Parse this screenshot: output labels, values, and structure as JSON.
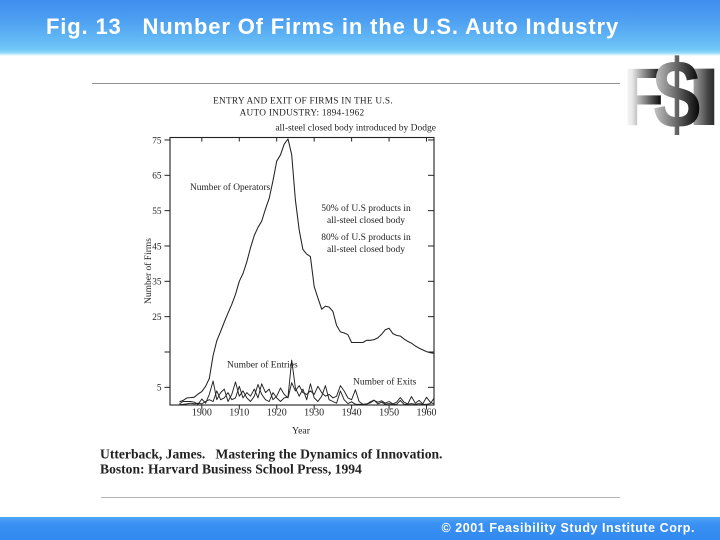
{
  "header": {
    "title": "Fig. 13   Number Of Firms in the U.S. Auto Industry"
  },
  "footer": {
    "copyright": "© 2001 Feasibility Study Institute Corp."
  },
  "logo": {
    "name": "FSI logo",
    "letters": [
      "F",
      "$",
      "I"
    ]
  },
  "citation": {
    "line1": "Utterback, James.   Mastering the Dynamics of Innovation.",
    "line2": "Boston: Harvard Business School Press, 1994"
  },
  "colors": {
    "header_gradient_top": "#3f8eee",
    "header_gradient_bottom": "#70c7f7",
    "footer_blue": "#3a91f3",
    "title_text": "#ffffff",
    "scan_ink": "#1c1c1c",
    "rule_gray": "#9a9a9a"
  },
  "chart_data": {
    "type": "line",
    "title_line1": "ENTRY AND EXIT OF FIRMS IN THE U.S.",
    "title_line2": "AUTO INDUSTRY: 1894-1962",
    "xlabel": "Year",
    "ylabel": "Number of Firms",
    "xlim": [
      1891.5,
      1962
    ],
    "ylim": [
      0,
      75.7
    ],
    "x_ticks": [
      1900,
      1910,
      1920,
      1930,
      1940,
      1950,
      1960
    ],
    "y_ticks": [
      5,
      15,
      25,
      35,
      45,
      55,
      65,
      75
    ],
    "y_tick_labeled": [
      5,
      25,
      35,
      45,
      55,
      65,
      75
    ],
    "grid": false,
    "legend_position": "inline-annotations",
    "annotations": {
      "dodge": "all-steel closed body introduced by Dodge",
      "operators_label": "Number of Operators",
      "pct50_line1": "50% of U.S products in",
      "pct50_line2": "all-steel closed body",
      "pct80_line1": "80% of U.S products in",
      "pct80_line2": "all-steel closed body",
      "entries_label": "Number of Entries",
      "exits_label": "Number of Exits"
    },
    "x": [
      1894,
      1895,
      1896,
      1897,
      1898,
      1899,
      1900,
      1901,
      1902,
      1903,
      1904,
      1905,
      1906,
      1907,
      1908,
      1909,
      1910,
      1911,
      1912,
      1913,
      1914,
      1915,
      1916,
      1917,
      1918,
      1919,
      1920,
      1921,
      1922,
      1923,
      1924,
      1925,
      1926,
      1927,
      1928,
      1929,
      1930,
      1931,
      1932,
      1933,
      1934,
      1935,
      1936,
      1937,
      1938,
      1939,
      1940,
      1941,
      1942,
      1943,
      1944,
      1945,
      1946,
      1947,
      1948,
      1949,
      1950,
      1951,
      1952,
      1953,
      1954,
      1955,
      1956,
      1957,
      1958,
      1959,
      1960,
      1961,
      1962
    ],
    "series": [
      {
        "name": "Number of Operators",
        "values": [
          0.9,
          1.3,
          2.0,
          2.1,
          2.2,
          3.1,
          3.8,
          5.3,
          7.5,
          14.0,
          18.2,
          20.8,
          23.5,
          26.0,
          28.5,
          31.3,
          35.0,
          37.2,
          40.5,
          44.5,
          48.0,
          50.3,
          52.0,
          55.5,
          58.5,
          63.5,
          69.0,
          70.8,
          73.8,
          75.3,
          70.8,
          58.0,
          49.5,
          44.0,
          42.7,
          42.0,
          33.5,
          30.3,
          27.1,
          28.0,
          27.7,
          26.5,
          22.5,
          20.7,
          20.4,
          19.9,
          17.7,
          17.7,
          17.7,
          17.7,
          18.3,
          18.3,
          18.5,
          19.0,
          20.0,
          21.3,
          21.7,
          20.2,
          19.7,
          19.5,
          18.7,
          18.0,
          17.5,
          16.7,
          16.1,
          15.6,
          15.1,
          14.8,
          14.6
        ]
      },
      {
        "name": "Number of Entries",
        "values": [
          0.3,
          1.0,
          1.0,
          1.0,
          0.8,
          0.2,
          1.7,
          0.5,
          3.0,
          6.8,
          1.5,
          3.5,
          4.5,
          1.0,
          3.0,
          6.5,
          2.5,
          4.0,
          2.0,
          1.0,
          2.5,
          5.8,
          3.0,
          1.5,
          1.0,
          3.5,
          2.0,
          1.0,
          2.0,
          2.2,
          12.7,
          4.8,
          2.5,
          4.5,
          1.5,
          6.0,
          2.0,
          1.0,
          2.5,
          5.5,
          1.5,
          1.0,
          0.5,
          4.0,
          1.5,
          0.4,
          0.9,
          0.2,
          0.2,
          0.2,
          0.2,
          0.9,
          1.4,
          0.3,
          0.8,
          0.2,
          0.4,
          0.2,
          0.2,
          1.3,
          0.2,
          0.2,
          0.4,
          0.2,
          0.4,
          0.2,
          0.2,
          0.4,
          1.9
        ]
      },
      {
        "name": "Number of Exits",
        "values": [
          0.1,
          0.2,
          0.3,
          0.5,
          0.3,
          0.5,
          0.3,
          1.0,
          1.5,
          1.0,
          4.0,
          1.5,
          2.0,
          3.5,
          1.5,
          2.0,
          5.3,
          2.0,
          3.5,
          2.5,
          4.5,
          2.0,
          6.0,
          3.5,
          4.5,
          1.5,
          2.5,
          4.8,
          3.0,
          2.0,
          6.3,
          4.0,
          5.5,
          3.5,
          3.0,
          4.0,
          3.0,
          5.3,
          3.5,
          2.5,
          3.0,
          2.0,
          2.5,
          5.5,
          4.0,
          2.0,
          1.5,
          4.3,
          1.0,
          0.2,
          0.3,
          0.6,
          1.3,
          0.8,
          1.2,
          0.5,
          1.0,
          0.3,
          0.8,
          2.1,
          0.8,
          0.3,
          2.4,
          0.5,
          1.3,
          0.3,
          2.2,
          0.8,
          0.3
        ]
      }
    ]
  }
}
